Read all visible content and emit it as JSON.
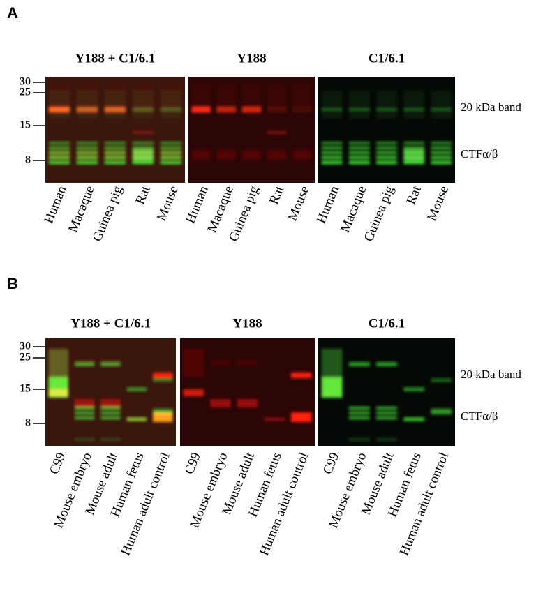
{
  "panels": [
    {
      "label": "A",
      "blots": [
        {
          "title": "Y188 + C1/6.1",
          "lanes": [
            "Human",
            "Macaque",
            "Guinea pig",
            "Rat",
            "Mouse"
          ]
        },
        {
          "title": "Y188",
          "lanes": [
            "Human",
            "Macaque",
            "Guinea pig",
            "Rat",
            "Mouse"
          ]
        },
        {
          "title": "C1/6.1",
          "lanes": [
            "Human",
            "Macaque",
            "Guinea pig",
            "Rat",
            "Mouse"
          ]
        }
      ],
      "markers": [
        30,
        25,
        15,
        8
      ],
      "band_labels": [
        "20 kDa band",
        "CTFα/β"
      ]
    },
    {
      "label": "B",
      "blots": [
        {
          "title": "Y188 + C1/6.1",
          "lanes": [
            "C99",
            "Mouse embryo",
            "Mouse adult",
            "Human fetus",
            "Human adult control"
          ]
        },
        {
          "title": "Y188",
          "lanes": [
            "C99",
            "Mouse embryo",
            "Mouse adult",
            "Human fetus",
            "Human adult control"
          ]
        },
        {
          "title": "C1/6.1",
          "lanes": [
            "C99",
            "Mouse embryo",
            "Mouse adult",
            "Human fetus",
            "Human adult control"
          ]
        }
      ],
      "markers": [
        30,
        25,
        15,
        8
      ],
      "band_labels": [
        "20 kDa band",
        "CTFα/β"
      ]
    }
  ]
}
